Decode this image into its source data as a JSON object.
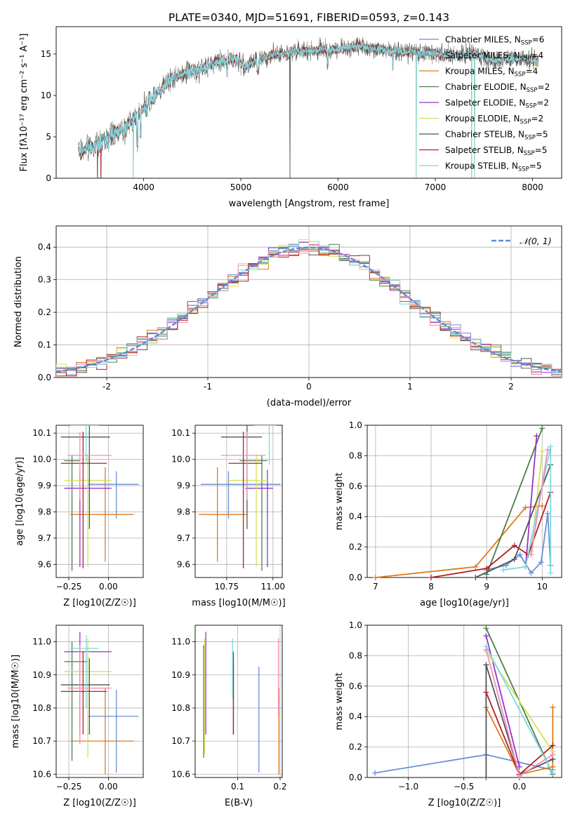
{
  "figure": {
    "title": "PLATE=0340, MJD=51691, FIBERID=0593, z=0.143"
  },
  "chart_data": [
    {
      "id": "spectrum",
      "type": "line",
      "xlabel": "wavelength [Angstrom, rest frame]",
      "ylabel": "Flux [fλ10⁻¹⁷ erg cm⁻² s⁻¹ A⁻¹]",
      "xlim": [
        3100,
        8300
      ],
      "ylim": [
        0,
        18.3
      ],
      "xticks": [
        4000,
        5000,
        6000,
        7000,
        8000
      ],
      "yticks": [
        0,
        5,
        10,
        15
      ],
      "grid": false,
      "legend_position": "upper-right",
      "continuum_anchors": {
        "x": [
          3330,
          3450,
          3550,
          3700,
          3850,
          3950,
          4050,
          4150,
          4300,
          4450,
          4600,
          4750,
          4900,
          5050,
          5200,
          5400,
          5600,
          5800,
          6000,
          6200,
          6400,
          6600,
          6800,
          7000,
          7200,
          7400,
          7600,
          7800,
          8050
        ],
        "y": [
          3.2,
          3.8,
          4.2,
          5.5,
          6.5,
          7.8,
          9.0,
          10.5,
          12.0,
          12.8,
          13.2,
          14.0,
          14.5,
          13.5,
          14.5,
          15.0,
          15.3,
          15.5,
          15.6,
          16.0,
          15.6,
          15.3,
          15.2,
          15.0,
          14.8,
          15.0,
          14.2,
          14.5,
          14.2
        ]
      },
      "series": [
        {
          "name": "Chabrier MILES, N_SSP=6",
          "color": "#6b8fd8"
        },
        {
          "name": "Salpeter MILES, N_SSP=4",
          "color": "#9a9a9a"
        },
        {
          "name": "Kroupa MILES, N_SSP=4",
          "color": "#e07b1a"
        },
        {
          "name": "Chabrier ELODIE, N_SSP=2",
          "color": "#4c7f4c"
        },
        {
          "name": "Salpeter ELODIE, N_SSP=2",
          "color": "#9932cc"
        },
        {
          "name": "Kroupa ELODIE, N_SSP=2",
          "color": "#d4e157"
        },
        {
          "name": "Chabrier STELIB, N_SSP=5",
          "color": "#555555"
        },
        {
          "name": "Salpeter STELIB, N_SSP=5",
          "color": "#b22222"
        },
        {
          "name": "Kroupa STELIB, N_SSP=5",
          "color": "#7fd8e0"
        }
      ],
      "legend": [
        {
          "base": "Chabrier MILES, N",
          "sub": "SSP",
          "tail": "=6"
        },
        {
          "base": "Salpeter MILES, N",
          "sub": "SSP",
          "tail": "=4"
        },
        {
          "base": "Kroupa MILES, N",
          "sub": "SSP",
          "tail": "=4"
        },
        {
          "base": "Chabrier ELODIE, N",
          "sub": "SSP",
          "tail": "=2"
        },
        {
          "base": "Salpeter ELODIE, N",
          "sub": "SSP",
          "tail": "=2"
        },
        {
          "base": "Kroupa ELODIE, N",
          "sub": "SSP",
          "tail": "=2"
        },
        {
          "base": "Chabrier STELIB, N",
          "sub": "SSP",
          "tail": "=5"
        },
        {
          "base": "Salpeter STELIB, N",
          "sub": "SSP",
          "tail": "=5"
        },
        {
          "base": "Kroupa STELIB, N",
          "sub": "SSP",
          "tail": "=5"
        }
      ]
    },
    {
      "id": "residual-histogram",
      "type": "bar",
      "xlabel": "(data-model)/error",
      "ylabel": "Normed distribution",
      "xlim": [
        -2.5,
        2.5
      ],
      "ylim": [
        0,
        0.465
      ],
      "xticks": [
        -2,
        -1,
        0,
        1,
        2
      ],
      "yticks": [
        0.0,
        0.1,
        0.2,
        0.3,
        0.4
      ],
      "grid": true,
      "legend_position": "upper-right",
      "bin_width": 0.1,
      "reference_curve": {
        "label": "𝒩(0, 1)",
        "color": "#5b8bd9",
        "mean": 0,
        "sigma": 1
      },
      "series_colors": [
        "#6b8fd8",
        "#e07b1a",
        "#4c7f4c",
        "#9932cc",
        "#d4e157",
        "#555555",
        "#b22222",
        "#7fd8e0",
        "#ef8fb6"
      ]
    },
    {
      "id": "age-vs-Z",
      "type": "scatter",
      "xlabel": "Z [log10(Z/Z☉)]",
      "ylabel": "age [log10(age/yr)]",
      "xlim": [
        -0.33,
        0.22
      ],
      "ylim": [
        9.55,
        10.13
      ],
      "xticks": [
        -0.25,
        0.0
      ],
      "xticklabels": [
        "−0.25",
        "0.00"
      ],
      "yticks": [
        9.6,
        9.7,
        9.8,
        9.9,
        10.0,
        10.1
      ],
      "grid": true,
      "points": [
        {
          "x": 0.05,
          "y": 9.905,
          "xerr": [
            0.18,
            0.14
          ],
          "yerr": [
            0.13,
            0.05
          ],
          "color": "#6b8fd8"
        },
        {
          "x": -0.02,
          "y": 9.79,
          "xerr": [
            0.22,
            0.18
          ],
          "yerr": [
            0.18,
            0.18
          ],
          "color": "#e07b1a"
        },
        {
          "x": -0.23,
          "y": 9.995,
          "xerr": [
            0.05,
            0.05
          ],
          "yerr": [
            0.42,
            0.02
          ],
          "color": "#4c7f4c"
        },
        {
          "x": -0.18,
          "y": 9.89,
          "xerr": [
            0.1,
            0.2
          ],
          "yerr": [
            0.3,
            0.07
          ],
          "color": "#9932cc"
        },
        {
          "x": -0.13,
          "y": 9.92,
          "xerr": [
            0.15,
            0.15
          ],
          "yerr": [
            0.33,
            0.1
          ],
          "color": "#d4e157"
        },
        {
          "x": -0.12,
          "y": 10.085,
          "xerr": [
            0.18,
            0.13
          ],
          "yerr": [
            0.35,
            0.08
          ],
          "color": "#555555"
        },
        {
          "x": -0.16,
          "y": 9.985,
          "xerr": [
            0.14,
            0.15
          ],
          "yerr": [
            0.4,
            0.12
          ],
          "color": "#b22222"
        },
        {
          "x": -0.14,
          "y": 10.13,
          "xerr": [
            0.1,
            0.08
          ],
          "yerr": [
            0.15,
            0.07
          ],
          "color": "#7fd8e0"
        },
        {
          "x": -0.18,
          "y": 10.015,
          "xerr": [
            0.08,
            0.2
          ],
          "yerr": [
            0.17,
            0.09
          ],
          "color": "#ef8fb6"
        }
      ]
    },
    {
      "id": "age-vs-mass",
      "type": "scatter",
      "xlabel": "mass [log10(M/M☉)]",
      "ylabel": "",
      "xlim": [
        10.58,
        11.05
      ],
      "ylim": [
        9.55,
        10.13
      ],
      "xticks": [
        10.75,
        11.0
      ],
      "xticklabels": [
        "10.75",
        "11.00"
      ],
      "yticks": [
        9.6,
        9.7,
        9.8,
        9.9,
        10.0,
        10.1
      ],
      "grid": true,
      "points": [
        {
          "x": 10.76,
          "y": 9.905,
          "xerr": [
            0.15,
            0.28
          ],
          "yerr": [
            0.13,
            0.05
          ],
          "color": "#6b8fd8"
        },
        {
          "x": 10.7,
          "y": 9.79,
          "xerr": [
            0.1,
            0.16
          ],
          "yerr": [
            0.18,
            0.18
          ],
          "color": "#e07b1a"
        },
        {
          "x": 10.94,
          "y": 9.995,
          "xerr": [
            0.12,
            0.03
          ],
          "yerr": [
            0.42,
            0.02
          ],
          "color": "#4c7f4c"
        },
        {
          "x": 10.97,
          "y": 9.89,
          "xerr": [
            0.12,
            0.03
          ],
          "yerr": [
            0.3,
            0.07
          ],
          "color": "#9932cc"
        },
        {
          "x": 10.91,
          "y": 9.92,
          "xerr": [
            0.16,
            0.06
          ],
          "yerr": [
            0.33,
            0.1
          ],
          "color": "#d4e157"
        },
        {
          "x": 10.86,
          "y": 10.085,
          "xerr": [
            0.14,
            0.08
          ],
          "yerr": [
            0.35,
            0.08
          ],
          "color": "#555555"
        },
        {
          "x": 10.84,
          "y": 9.985,
          "xerr": [
            0.08,
            0.1
          ],
          "yerr": [
            0.4,
            0.12
          ],
          "color": "#b22222"
        },
        {
          "x": 10.98,
          "y": 10.13,
          "xerr": [
            0.08,
            0.04
          ],
          "yerr": [
            0.15,
            0.07
          ],
          "color": "#7fd8e0"
        },
        {
          "x": 10.86,
          "y": 10.015,
          "xerr": [
            0.14,
            0.1
          ],
          "yerr": [
            0.17,
            0.09
          ],
          "color": "#ef8fb6"
        }
      ]
    },
    {
      "id": "mass-weight-vs-age",
      "type": "line",
      "xlabel": "age [log10(age/yr)]",
      "ylabel": "mass weight",
      "xlim": [
        6.85,
        10.35
      ],
      "ylim": [
        0.0,
        1.0
      ],
      "xticks": [
        7,
        8,
        9,
        10
      ],
      "yticks": [
        0.0,
        0.2,
        0.4,
        0.6,
        0.8,
        1.0
      ],
      "grid": true,
      "series": [
        {
          "color": "#6b8fd8",
          "x": [
            9.0,
            9.35,
            9.6,
            9.8,
            9.98,
            10.1,
            10.15
          ],
          "y": [
            0.05,
            0.08,
            0.15,
            0.03,
            0.1,
            0.42,
            0.08
          ]
        },
        {
          "color": "#e07b1a",
          "x": [
            7.0,
            8.8,
            9.7,
            10.0
          ],
          "y": [
            0.0,
            0.07,
            0.46,
            0.47
          ]
        },
        {
          "color": "#4c7f4c",
          "x": [
            9.0,
            10.0
          ],
          "y": [
            0.02,
            0.98
          ]
        },
        {
          "color": "#9932cc",
          "x": [
            9.7,
            9.9
          ],
          "y": [
            0.07,
            0.93
          ]
        },
        {
          "color": "#d4e157",
          "x": [
            9.8,
            10.0
          ],
          "y": [
            0.17,
            0.83
          ]
        },
        {
          "color": "#555555",
          "x": [
            8.8,
            9.5,
            10.15
          ],
          "y": [
            0.0,
            0.12,
            0.74
          ]
        },
        {
          "color": "#b22222",
          "x": [
            8.0,
            9.0,
            9.5,
            9.75,
            10.15
          ],
          "y": [
            0.0,
            0.06,
            0.21,
            0.15,
            0.56
          ]
        },
        {
          "color": "#7fd8e0",
          "x": [
            9.3,
            9.7,
            10.15,
            10.15
          ],
          "y": [
            0.05,
            0.07,
            0.86,
            0.03
          ]
        },
        {
          "color": "#ef8fb6",
          "x": [
            9.8,
            10.1
          ],
          "y": [
            0.15,
            0.84
          ]
        }
      ]
    },
    {
      "id": "mass-vs-Z",
      "type": "scatter",
      "xlabel": "Z [log10(Z/Z☉)]",
      "ylabel": "mass [log10(M/M☉)]",
      "xlim": [
        -0.33,
        0.22
      ],
      "ylim": [
        10.59,
        11.05
      ],
      "xticks": [
        -0.25,
        0.0
      ],
      "xticklabels": [
        "−0.25",
        "0.00"
      ],
      "yticks": [
        10.6,
        10.7,
        10.8,
        10.9,
        11.0
      ],
      "grid": true,
      "points": [
        {
          "x": 0.05,
          "y": 10.775,
          "xerr": [
            0.18,
            0.14
          ],
          "yerr": [
            0.17,
            0.08
          ],
          "color": "#6b8fd8"
        },
        {
          "x": -0.02,
          "y": 10.7,
          "xerr": [
            0.22,
            0.18
          ],
          "yerr": [
            0.1,
            0.16
          ],
          "color": "#e07b1a"
        },
        {
          "x": -0.23,
          "y": 10.94,
          "xerr": [
            0.05,
            0.1
          ],
          "yerr": [
            0.3,
            0.06
          ],
          "color": "#4c7f4c"
        },
        {
          "x": -0.18,
          "y": 10.97,
          "xerr": [
            0.1,
            0.2
          ],
          "yerr": [
            0.25,
            0.06
          ],
          "color": "#9932cc"
        },
        {
          "x": -0.13,
          "y": 10.91,
          "xerr": [
            0.15,
            0.15
          ],
          "yerr": [
            0.26,
            0.1
          ],
          "color": "#d4e157"
        },
        {
          "x": -0.12,
          "y": 10.87,
          "xerr": [
            0.18,
            0.13
          ],
          "yerr": [
            0.15,
            0.08
          ],
          "color": "#555555"
        },
        {
          "x": -0.16,
          "y": 10.85,
          "xerr": [
            0.14,
            0.15
          ],
          "yerr": [
            0.13,
            0.12
          ],
          "color": "#b22222"
        },
        {
          "x": -0.14,
          "y": 10.98,
          "xerr": [
            0.1,
            0.08
          ],
          "yerr": [
            0.18,
            0.04
          ],
          "color": "#7fd8e0"
        },
        {
          "x": -0.18,
          "y": 10.86,
          "xerr": [
            0.08,
            0.2
          ],
          "yerr": [
            0.17,
            0.13
          ],
          "color": "#ef8fb6"
        }
      ]
    },
    {
      "id": "mass-vs-EBV",
      "type": "scatter",
      "xlabel": "E(B-V)",
      "ylabel": "",
      "xlim": [
        0.0,
        0.205
      ],
      "ylim": [
        10.59,
        11.05
      ],
      "xticks": [
        0.1,
        0.2
      ],
      "xticklabels": [
        "0.1",
        "0.2"
      ],
      "yticks": [
        10.6,
        10.7,
        10.8,
        10.9,
        11.0
      ],
      "grid": true,
      "points": [
        {
          "x": 0.15,
          "y": 10.775,
          "yerr": [
            0.17,
            0.15
          ],
          "color": "#6b8fd8"
        },
        {
          "x": 0.197,
          "y": 10.7,
          "yerr": [
            0.1,
            0.16
          ],
          "color": "#e07b1a"
        },
        {
          "x": 0.02,
          "y": 10.94,
          "yerr": [
            0.29,
            0.05
          ],
          "color": "#4c7f4c"
        },
        {
          "x": 0.025,
          "y": 10.97,
          "yerr": [
            0.25,
            0.06
          ],
          "color": "#9932cc"
        },
        {
          "x": 0.022,
          "y": 10.91,
          "yerr": [
            0.25,
            0.1
          ],
          "color": "#d4e157"
        },
        {
          "x": 0.09,
          "y": 10.87,
          "yerr": [
            0.15,
            0.08
          ],
          "color": "#555555"
        },
        {
          "x": 0.09,
          "y": 10.85,
          "yerr": [
            0.13,
            0.12
          ],
          "color": "#b22222"
        },
        {
          "x": 0.088,
          "y": 10.96,
          "yerr": [
            0.13,
            0.05
          ],
          "color": "#7fd8e0"
        },
        {
          "x": 0.196,
          "y": 10.95,
          "yerr": [
            0.17,
            0.06
          ],
          "color": "#ef8fb6"
        }
      ]
    },
    {
      "id": "mass-weight-vs-Z",
      "type": "line",
      "xlabel": "Z [log10(Z/Z☉)]",
      "ylabel": "mass weight",
      "xlim": [
        -1.37,
        0.38
      ],
      "ylim": [
        0.0,
        1.0
      ],
      "xticks": [
        -1.0,
        -0.5,
        0.0
      ],
      "xticklabels": [
        "−1.0",
        "−0.5",
        "0.0"
      ],
      "yticks": [
        0.0,
        0.2,
        0.4,
        0.6,
        0.8,
        1.0
      ],
      "grid": true,
      "series": [
        {
          "color": "#6b8fd8",
          "x": [
            -1.3,
            -0.3,
            0.3
          ],
          "y": [
            0.03,
            0.15,
            0.05
          ]
        },
        {
          "color": "#e07b1a",
          "x": [
            -0.3,
            0.0,
            0.3,
            0.3
          ],
          "y": [
            0.46,
            0.02,
            0.07,
            0.46
          ]
        },
        {
          "color": "#4c7f4c",
          "x": [
            -0.3,
            0.3
          ],
          "y": [
            0.98,
            0.02
          ]
        },
        {
          "color": "#9932cc",
          "x": [
            -0.3,
            0.0
          ],
          "y": [
            0.93,
            0.07
          ]
        },
        {
          "color": "#d4e157",
          "x": [
            -0.3,
            0.3
          ],
          "y": [
            0.83,
            0.17
          ]
        },
        {
          "color": "#555555",
          "x": [
            -0.3,
            -0.3,
            0.0,
            0.3
          ],
          "y": [
            0.0,
            0.74,
            0.02,
            0.12
          ]
        },
        {
          "color": "#b22222",
          "x": [
            -0.3,
            0.0,
            0.3
          ],
          "y": [
            0.56,
            0.02,
            0.21
          ]
        },
        {
          "color": "#7fd8e0",
          "x": [
            -0.3,
            0.3
          ],
          "y": [
            0.86,
            0.03
          ]
        },
        {
          "color": "#ef8fb6",
          "x": [
            -0.3,
            0.0,
            0.3
          ],
          "y": [
            0.84,
            0.01,
            0.15
          ]
        }
      ]
    }
  ]
}
